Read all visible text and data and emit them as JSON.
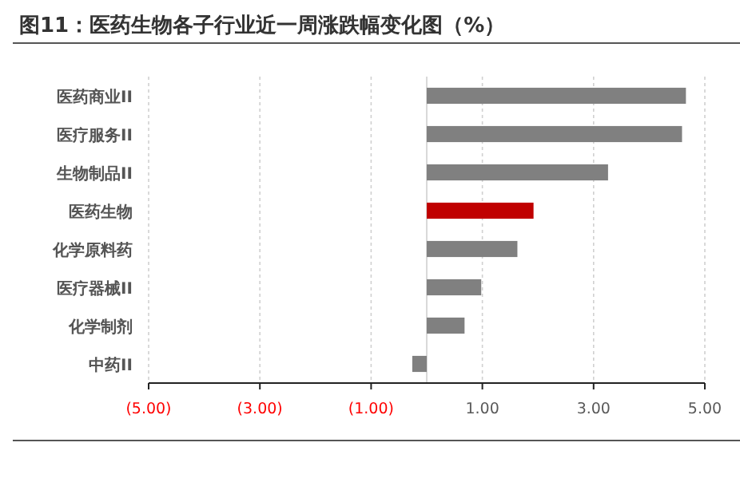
{
  "chart_data": {
    "type": "bar",
    "orientation": "horizontal",
    "title": "图11：医药生物各子行业近一周涨跌幅变化图（%）",
    "categories": [
      "医药商业II",
      "医疗服务II",
      "生物制品II",
      "医药生物",
      "化学原料药",
      "医疗器械II",
      "化学制剂",
      "中药II"
    ],
    "values": [
      4.66,
      4.59,
      3.26,
      1.92,
      1.63,
      0.98,
      0.68,
      -0.26
    ],
    "colors": [
      "#808080",
      "#808080",
      "#808080",
      "#c00000",
      "#808080",
      "#808080",
      "#808080",
      "#808080"
    ],
    "xlim": [
      -5,
      5
    ],
    "xticks": [
      {
        "value": -5,
        "label": "(5.00)"
      },
      {
        "value": -3,
        "label": "(3.00)"
      },
      {
        "value": -1,
        "label": "(1.00)"
      },
      {
        "value": 1,
        "label": "1.00"
      },
      {
        "value": 3,
        "label": "3.00"
      },
      {
        "value": 5,
        "label": "5.00"
      }
    ],
    "grid": "x"
  }
}
